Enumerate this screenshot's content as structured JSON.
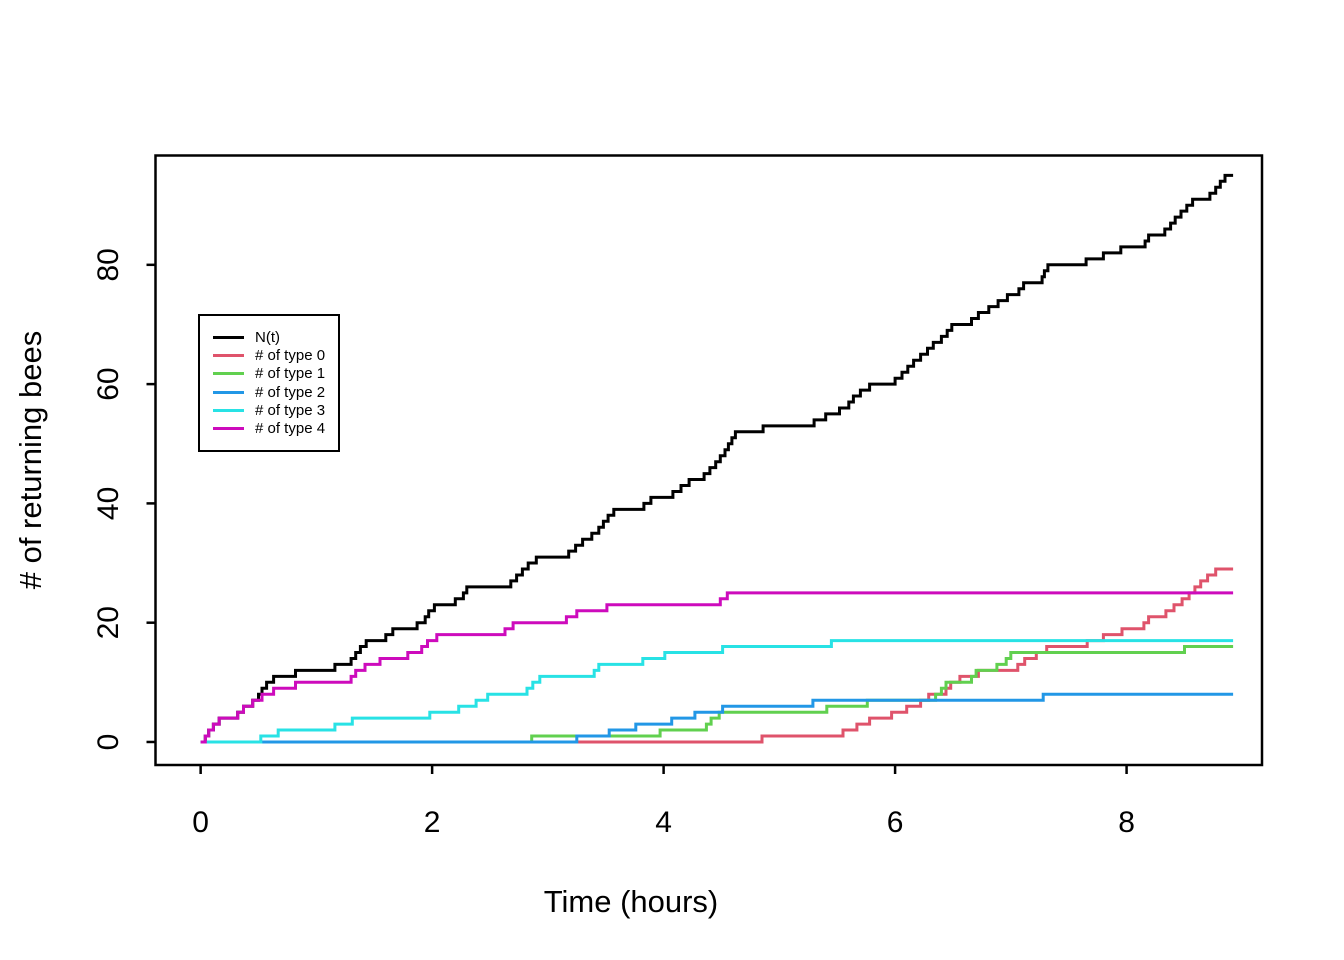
{
  "chart_data": {
    "type": "line",
    "subtype": "step-post",
    "title": "",
    "xlabel": "Time (hours)",
    "ylabel": "# of returning bees",
    "xticks": [
      0,
      2,
      4,
      6,
      8
    ],
    "yticks": [
      0,
      20,
      40,
      60,
      80
    ],
    "xlim": [
      -0.39,
      9.17
    ],
    "ylim": [
      -3.86,
      98.33
    ],
    "grid": false,
    "legend_position": "upper-left",
    "line_start_t": 0,
    "line_end_t": 8.92,
    "series": [
      {
        "name": "N(t)",
        "color": "#000000",
        "start": [
          0,
          0
        ],
        "steps": [
          [
            0.04,
            1
          ],
          [
            0.07,
            2
          ],
          [
            0.11,
            3
          ],
          [
            0.16,
            4
          ],
          [
            0.32,
            5
          ],
          [
            0.37,
            6
          ],
          [
            0.45,
            7
          ],
          [
            0.5,
            8
          ],
          [
            0.53,
            9
          ],
          [
            0.57,
            10
          ],
          [
            0.63,
            11
          ],
          [
            0.82,
            12
          ],
          [
            1.16,
            13
          ],
          [
            1.3,
            14
          ],
          [
            1.34,
            15
          ],
          [
            1.38,
            16
          ],
          [
            1.43,
            17
          ],
          [
            1.6,
            18
          ],
          [
            1.66,
            19
          ],
          [
            1.87,
            20
          ],
          [
            1.94,
            21
          ],
          [
            1.97,
            22
          ],
          [
            2.02,
            23
          ],
          [
            2.2,
            24
          ],
          [
            2.27,
            25
          ],
          [
            2.3,
            26
          ],
          [
            2.68,
            27
          ],
          [
            2.73,
            28
          ],
          [
            2.78,
            29
          ],
          [
            2.83,
            30
          ],
          [
            2.9,
            31
          ],
          [
            3.18,
            32
          ],
          [
            3.24,
            33
          ],
          [
            3.3,
            34
          ],
          [
            3.38,
            35
          ],
          [
            3.44,
            36
          ],
          [
            3.48,
            37
          ],
          [
            3.52,
            38
          ],
          [
            3.57,
            39
          ],
          [
            3.83,
            40
          ],
          [
            3.89,
            41
          ],
          [
            4.08,
            42
          ],
          [
            4.15,
            43
          ],
          [
            4.22,
            44
          ],
          [
            4.35,
            45
          ],
          [
            4.4,
            46
          ],
          [
            4.45,
            47
          ],
          [
            4.49,
            48
          ],
          [
            4.53,
            49
          ],
          [
            4.56,
            50
          ],
          [
            4.59,
            51
          ],
          [
            4.62,
            52
          ],
          [
            4.86,
            53
          ],
          [
            5.3,
            54
          ],
          [
            5.4,
            55
          ],
          [
            5.52,
            56
          ],
          [
            5.6,
            57
          ],
          [
            5.64,
            58
          ],
          [
            5.7,
            59
          ],
          [
            5.78,
            60
          ],
          [
            6.0,
            61
          ],
          [
            6.06,
            62
          ],
          [
            6.11,
            63
          ],
          [
            6.16,
            64
          ],
          [
            6.22,
            65
          ],
          [
            6.28,
            66
          ],
          [
            6.33,
            67
          ],
          [
            6.4,
            68
          ],
          [
            6.45,
            69
          ],
          [
            6.49,
            70
          ],
          [
            6.66,
            71
          ],
          [
            6.72,
            72
          ],
          [
            6.81,
            73
          ],
          [
            6.89,
            74
          ],
          [
            6.97,
            75
          ],
          [
            7.07,
            76
          ],
          [
            7.11,
            77
          ],
          [
            7.27,
            78
          ],
          [
            7.29,
            79
          ],
          [
            7.32,
            80
          ],
          [
            7.65,
            81
          ],
          [
            7.8,
            82
          ],
          [
            7.95,
            83
          ],
          [
            8.16,
            84
          ],
          [
            8.19,
            85
          ],
          [
            8.33,
            86
          ],
          [
            8.38,
            87
          ],
          [
            8.42,
            88
          ],
          [
            8.47,
            89
          ],
          [
            8.52,
            90
          ],
          [
            8.57,
            91
          ],
          [
            8.72,
            92
          ],
          [
            8.77,
            93
          ],
          [
            8.81,
            94
          ],
          [
            8.85,
            95
          ]
        ]
      },
      {
        "name": "# of type 0",
        "color": "#DF536B",
        "start": [
          0,
          0
        ],
        "steps": [
          [
            4.85,
            1
          ],
          [
            5.55,
            2
          ],
          [
            5.67,
            3
          ],
          [
            5.78,
            4
          ],
          [
            5.97,
            5
          ],
          [
            6.1,
            6
          ],
          [
            6.22,
            7
          ],
          [
            6.29,
            8
          ],
          [
            6.44,
            9
          ],
          [
            6.48,
            10
          ],
          [
            6.56,
            11
          ],
          [
            6.72,
            12
          ],
          [
            7.06,
            13
          ],
          [
            7.12,
            14
          ],
          [
            7.22,
            15
          ],
          [
            7.31,
            16
          ],
          [
            7.66,
            17
          ],
          [
            7.8,
            18
          ],
          [
            7.96,
            19
          ],
          [
            8.15,
            20
          ],
          [
            8.19,
            21
          ],
          [
            8.34,
            22
          ],
          [
            8.41,
            23
          ],
          [
            8.48,
            24
          ],
          [
            8.54,
            25
          ],
          [
            8.59,
            26
          ],
          [
            8.64,
            27
          ],
          [
            8.7,
            28
          ],
          [
            8.77,
            29
          ]
        ]
      },
      {
        "name": "# of type 1",
        "color": "#61D04F",
        "start": [
          0,
          0
        ],
        "steps": [
          [
            2.86,
            1
          ],
          [
            3.97,
            2
          ],
          [
            4.37,
            3
          ],
          [
            4.41,
            4
          ],
          [
            4.48,
            5
          ],
          [
            5.41,
            6
          ],
          [
            5.76,
            7
          ],
          [
            6.35,
            8
          ],
          [
            6.4,
            9
          ],
          [
            6.44,
            10
          ],
          [
            6.66,
            11
          ],
          [
            6.7,
            12
          ],
          [
            6.88,
            13
          ],
          [
            6.96,
            14
          ],
          [
            7.0,
            15
          ],
          [
            8.5,
            16
          ]
        ]
      },
      {
        "name": "# of type 2",
        "color": "#2297E6",
        "start": [
          0,
          0
        ],
        "steps": [
          [
            3.25,
            1
          ],
          [
            3.53,
            2
          ],
          [
            3.76,
            3
          ],
          [
            4.07,
            4
          ],
          [
            4.27,
            5
          ],
          [
            4.51,
            6
          ],
          [
            5.29,
            7
          ],
          [
            7.28,
            8
          ]
        ]
      },
      {
        "name": "# of type 3",
        "color": "#28E2E5",
        "start": [
          0,
          0
        ],
        "steps": [
          [
            0.52,
            1
          ],
          [
            0.67,
            2
          ],
          [
            1.16,
            3
          ],
          [
            1.31,
            4
          ],
          [
            1.98,
            5
          ],
          [
            2.23,
            6
          ],
          [
            2.38,
            7
          ],
          [
            2.48,
            8
          ],
          [
            2.82,
            9
          ],
          [
            2.87,
            10
          ],
          [
            2.93,
            11
          ],
          [
            3.4,
            12
          ],
          [
            3.44,
            13
          ],
          [
            3.82,
            14
          ],
          [
            4.01,
            15
          ],
          [
            4.51,
            16
          ],
          [
            5.45,
            17
          ]
        ]
      },
      {
        "name": "# of type 4",
        "color": "#CD0BBC",
        "start": [
          0,
          0
        ],
        "steps": [
          [
            0.04,
            1
          ],
          [
            0.07,
            2
          ],
          [
            0.11,
            3
          ],
          [
            0.16,
            4
          ],
          [
            0.32,
            5
          ],
          [
            0.37,
            6
          ],
          [
            0.45,
            7
          ],
          [
            0.53,
            8
          ],
          [
            0.63,
            9
          ],
          [
            0.82,
            10
          ],
          [
            1.3,
            11
          ],
          [
            1.34,
            12
          ],
          [
            1.42,
            13
          ],
          [
            1.55,
            14
          ],
          [
            1.79,
            15
          ],
          [
            1.91,
            16
          ],
          [
            1.96,
            17
          ],
          [
            2.04,
            18
          ],
          [
            2.63,
            19
          ],
          [
            2.7,
            20
          ],
          [
            3.16,
            21
          ],
          [
            3.25,
            22
          ],
          [
            3.51,
            23
          ],
          [
            4.49,
            24
          ],
          [
            4.55,
            25
          ]
        ]
      }
    ],
    "legend_entries": [
      "N(t)",
      "# of type 0",
      "# of type 1",
      "# of type 2",
      "# of type 3",
      "# of type 4"
    ]
  }
}
